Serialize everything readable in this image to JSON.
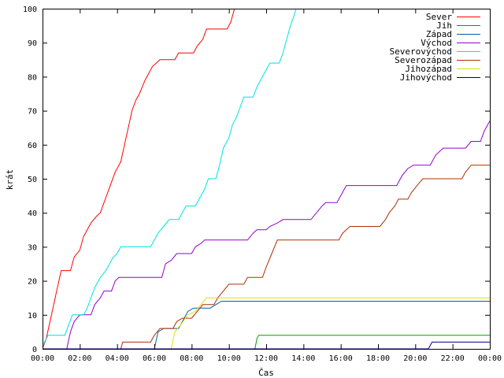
{
  "chart_data": {
    "type": "line",
    "xlabel": "Čas",
    "ylabel": "krát",
    "xlim": [
      0,
      24
    ],
    "ylim": [
      0,
      100
    ],
    "x_ticks": [
      0,
      2,
      4,
      6,
      8,
      10,
      12,
      14,
      16,
      18,
      20,
      22,
      24
    ],
    "x_tick_labels": [
      "00:00",
      "02:00",
      "04:00",
      "06:00",
      "08:00",
      "10:00",
      "12:00",
      "14:00",
      "16:00",
      "18:00",
      "20:00",
      "22:00",
      "00:00"
    ],
    "y_ticks": [
      0,
      10,
      20,
      30,
      40,
      50,
      60,
      70,
      80,
      90,
      100
    ],
    "grid": false,
    "legend_position": "top-right",
    "series": [
      {
        "name": "Sever",
        "color": "#ff0000",
        "points": [
          [
            0,
            0
          ],
          [
            0.2,
            3
          ],
          [
            0.4,
            8
          ],
          [
            0.6,
            13
          ],
          [
            0.8,
            18
          ],
          [
            1.0,
            23
          ],
          [
            1.5,
            23
          ],
          [
            1.7,
            27
          ],
          [
            2.0,
            29
          ],
          [
            2.2,
            33
          ],
          [
            2.4,
            35
          ],
          [
            2.6,
            37
          ],
          [
            2.9,
            39
          ],
          [
            3.1,
            40
          ],
          [
            3.3,
            43
          ],
          [
            3.5,
            46
          ],
          [
            3.7,
            49
          ],
          [
            3.9,
            52
          ],
          [
            4.2,
            55
          ],
          [
            4.4,
            60
          ],
          [
            4.6,
            65
          ],
          [
            4.8,
            70
          ],
          [
            5.0,
            73
          ],
          [
            5.2,
            75
          ],
          [
            5.5,
            79
          ],
          [
            5.7,
            81
          ],
          [
            5.9,
            83
          ],
          [
            6.1,
            84
          ],
          [
            6.3,
            85
          ],
          [
            7.1,
            85
          ],
          [
            7.3,
            87
          ],
          [
            8.1,
            87
          ],
          [
            8.3,
            89
          ],
          [
            8.6,
            91
          ],
          [
            8.8,
            94
          ],
          [
            9.9,
            94
          ],
          [
            10.1,
            96
          ],
          [
            10.3,
            100
          ]
        ]
      },
      {
        "name": "Jih",
        "color": "#00a000",
        "points": [
          [
            0,
            0
          ],
          [
            11.4,
            0
          ],
          [
            11.5,
            3
          ],
          [
            11.6,
            4
          ],
          [
            24,
            4
          ]
        ]
      },
      {
        "name": "Západ",
        "color": "#0060ad",
        "points": [
          [
            0,
            0
          ],
          [
            6.0,
            0
          ],
          [
            6.2,
            5
          ],
          [
            6.5,
            6
          ],
          [
            7.3,
            6
          ],
          [
            7.5,
            8
          ],
          [
            7.8,
            11
          ],
          [
            8.1,
            12
          ],
          [
            9.0,
            12
          ],
          [
            9.3,
            13
          ],
          [
            9.6,
            14
          ],
          [
            24,
            14
          ]
        ]
      },
      {
        "name": "Východ",
        "color": "#9400d3",
        "points": [
          [
            0,
            0
          ],
          [
            1.3,
            0
          ],
          [
            1.5,
            5
          ],
          [
            1.7,
            8
          ],
          [
            2.0,
            10
          ],
          [
            2.6,
            10
          ],
          [
            2.8,
            13
          ],
          [
            3.1,
            15
          ],
          [
            3.3,
            17
          ],
          [
            3.7,
            17
          ],
          [
            3.9,
            20
          ],
          [
            4.1,
            21
          ],
          [
            6.4,
            21
          ],
          [
            6.6,
            25
          ],
          [
            6.9,
            26
          ],
          [
            7.2,
            28
          ],
          [
            8.0,
            28
          ],
          [
            8.2,
            30
          ],
          [
            8.5,
            31
          ],
          [
            8.7,
            32
          ],
          [
            11.0,
            32
          ],
          [
            11.3,
            34
          ],
          [
            11.5,
            35
          ],
          [
            12.0,
            35
          ],
          [
            12.2,
            36
          ],
          [
            12.6,
            37
          ],
          [
            12.9,
            38
          ],
          [
            14.4,
            38
          ],
          [
            14.7,
            40
          ],
          [
            15.0,
            42
          ],
          [
            15.2,
            43
          ],
          [
            15.8,
            43
          ],
          [
            16.1,
            46
          ],
          [
            16.3,
            48
          ],
          [
            19.0,
            48
          ],
          [
            19.3,
            51
          ],
          [
            19.6,
            53
          ],
          [
            19.9,
            54
          ],
          [
            20.8,
            54
          ],
          [
            21.1,
            57
          ],
          [
            21.5,
            59
          ],
          [
            22.7,
            59
          ],
          [
            23.0,
            61
          ],
          [
            23.5,
            61
          ],
          [
            23.7,
            64
          ],
          [
            23.9,
            66
          ],
          [
            24,
            67
          ]
        ]
      },
      {
        "name": "Severovýchod",
        "color": "#00e0e0",
        "points": [
          [
            0,
            0
          ],
          [
            0.1,
            2
          ],
          [
            0.3,
            4
          ],
          [
            1.2,
            4
          ],
          [
            1.4,
            7
          ],
          [
            1.6,
            10
          ],
          [
            2.2,
            10
          ],
          [
            2.4,
            12
          ],
          [
            2.6,
            15
          ],
          [
            2.8,
            18
          ],
          [
            3.1,
            21
          ],
          [
            3.4,
            23
          ],
          [
            3.6,
            25
          ],
          [
            3.8,
            27
          ],
          [
            4.0,
            28
          ],
          [
            4.2,
            30
          ],
          [
            5.8,
            30
          ],
          [
            6.0,
            32
          ],
          [
            6.2,
            34
          ],
          [
            6.5,
            36
          ],
          [
            6.8,
            38
          ],
          [
            7.3,
            38
          ],
          [
            7.5,
            40
          ],
          [
            7.7,
            42
          ],
          [
            8.2,
            42
          ],
          [
            8.4,
            44
          ],
          [
            8.7,
            47
          ],
          [
            8.9,
            50
          ],
          [
            9.3,
            50
          ],
          [
            9.5,
            54
          ],
          [
            9.7,
            59
          ],
          [
            10.0,
            62
          ],
          [
            10.2,
            66
          ],
          [
            10.4,
            68
          ],
          [
            10.6,
            71
          ],
          [
            10.8,
            74
          ],
          [
            11.3,
            74
          ],
          [
            11.5,
            77
          ],
          [
            11.8,
            80
          ],
          [
            12.0,
            82
          ],
          [
            12.2,
            84
          ],
          [
            12.7,
            84
          ],
          [
            12.9,
            87
          ],
          [
            13.1,
            91
          ],
          [
            13.3,
            95
          ],
          [
            13.5,
            98
          ],
          [
            13.6,
            100
          ]
        ]
      },
      {
        "name": "Severozápad",
        "color": "#b03000",
        "points": [
          [
            0,
            0
          ],
          [
            4.2,
            0
          ],
          [
            4.3,
            2
          ],
          [
            5.8,
            2
          ],
          [
            6.0,
            4
          ],
          [
            6.3,
            6
          ],
          [
            7.0,
            6
          ],
          [
            7.2,
            8
          ],
          [
            7.5,
            9
          ],
          [
            8.0,
            9
          ],
          [
            8.3,
            11
          ],
          [
            8.6,
            13
          ],
          [
            9.2,
            13
          ],
          [
            9.4,
            15
          ],
          [
            9.7,
            17
          ],
          [
            10.0,
            19
          ],
          [
            10.8,
            19
          ],
          [
            11.0,
            21
          ],
          [
            11.8,
            21
          ],
          [
            12.0,
            24
          ],
          [
            12.3,
            28
          ],
          [
            12.6,
            32
          ],
          [
            15.9,
            32
          ],
          [
            16.1,
            34
          ],
          [
            16.5,
            36
          ],
          [
            18.1,
            36
          ],
          [
            18.4,
            38
          ],
          [
            18.6,
            40
          ],
          [
            18.9,
            42
          ],
          [
            19.1,
            44
          ],
          [
            19.6,
            44
          ],
          [
            19.8,
            46
          ],
          [
            20.1,
            48
          ],
          [
            20.4,
            50
          ],
          [
            22.5,
            50
          ],
          [
            22.7,
            52
          ],
          [
            23.0,
            54
          ],
          [
            24,
            54
          ]
        ]
      },
      {
        "name": "Jihozápad",
        "color": "#e0e000",
        "points": [
          [
            0,
            0
          ],
          [
            6.9,
            0
          ],
          [
            7.1,
            5
          ],
          [
            7.4,
            7
          ],
          [
            7.8,
            10
          ],
          [
            8.2,
            11
          ],
          [
            8.5,
            13
          ],
          [
            8.8,
            15
          ],
          [
            24,
            15
          ]
        ]
      },
      {
        "name": "Jihovýchod",
        "color": "#000080",
        "points": [
          [
            0,
            0
          ],
          [
            20.7,
            0
          ],
          [
            20.8,
            1
          ],
          [
            20.9,
            2
          ],
          [
            24,
            2
          ]
        ]
      }
    ]
  }
}
